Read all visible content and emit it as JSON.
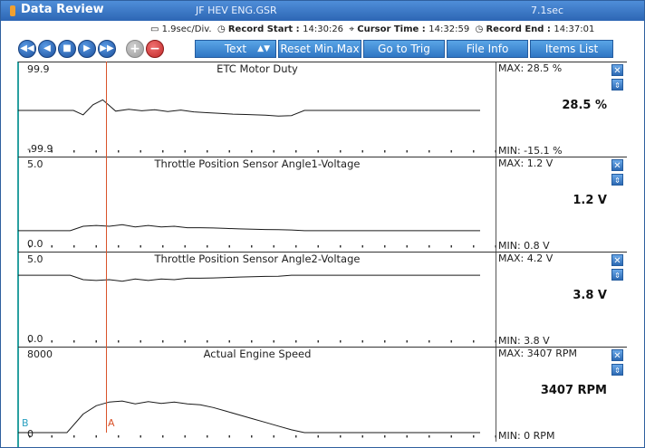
{
  "window": {
    "title": "Data Review",
    "file": "JF HEV ENG.GSR",
    "time_scale": "7.1sec"
  },
  "info": {
    "div": "1.9sec/Div.",
    "record_start_label": "Record Start",
    "record_start": "14:30:26",
    "cursor_time_label": "Cursor Time",
    "cursor_time": "14:32:59",
    "record_end_label": "Record End",
    "record_end": "14:37:01"
  },
  "toolbar": {
    "nav_icons": [
      "rewind-icon",
      "prev-icon",
      "stop-icon",
      "play-icon",
      "fast-forward-icon"
    ],
    "zoom_in": "+",
    "zoom_out": "−",
    "text_label": "Text",
    "reset_label": "Reset Min.Max",
    "gototrig_label": "Go to Trig",
    "fileinfo_label": "File Info",
    "itemslist_label": "Items List"
  },
  "markers": {
    "a": "A",
    "b": "B"
  },
  "panels": [
    {
      "title": "ETC Motor Duty",
      "ymax_label": "99.9",
      "ymin_label": "-99.9",
      "max_label": "MAX:  28.5 %",
      "min_label": "MIN:  -15.1 %",
      "current": "28.5 %",
      "ylim": [
        -99.9,
        99.9
      ],
      "x": [
        0,
        0.85,
        1.0,
        1.15,
        1.3,
        1.5,
        1.7,
        1.9,
        2.1,
        2.3,
        2.5,
        2.7,
        2.9,
        3.1,
        3.3,
        3.5,
        3.8,
        4.0,
        4.2,
        4.4,
        7.1
      ],
      "y": [
        0,
        0,
        -12,
        15,
        28.5,
        -2,
        3,
        -1,
        2,
        -3,
        1,
        -4,
        -6,
        -8,
        -10,
        -11,
        -13,
        -15.1,
        -14,
        0,
        0
      ]
    },
    {
      "title": "Throttle Position Sensor Angle1-Voltage",
      "ymax_label": "5.0",
      "ymin_label": "0.0",
      "max_label": "MAX:   1.2 V",
      "min_label": "MIN:   0.8 V",
      "current": "1.2 V",
      "ylim": [
        0,
        5
      ],
      "x": [
        0,
        0.8,
        1.0,
        1.2,
        1.4,
        1.6,
        1.8,
        2.0,
        2.2,
        2.4,
        2.6,
        2.8,
        3.0,
        3.2,
        3.4,
        3.6,
        3.8,
        4.0,
        4.2,
        4.4,
        7.1
      ],
      "y": [
        0.8,
        0.8,
        1.1,
        1.15,
        1.1,
        1.2,
        1.05,
        1.15,
        1.05,
        1.1,
        1.0,
        1.0,
        0.98,
        0.95,
        0.92,
        0.9,
        0.88,
        0.87,
        0.85,
        0.8,
        0.8
      ]
    },
    {
      "title": "Throttle Position Sensor Angle2-Voltage",
      "ymax_label": "5.0",
      "ymin_label": "0.0",
      "max_label": "MAX:   4.2 V",
      "min_label": "MIN:   3.8 V",
      "current": "3.8 V",
      "ylim": [
        0,
        5
      ],
      "x": [
        0,
        0.8,
        1.0,
        1.2,
        1.4,
        1.6,
        1.8,
        2.0,
        2.2,
        2.4,
        2.6,
        2.8,
        3.0,
        3.2,
        3.4,
        3.6,
        3.8,
        4.0,
        4.2,
        4.4,
        7.1
      ],
      "y": [
        4.2,
        4.2,
        3.9,
        3.85,
        3.9,
        3.8,
        3.95,
        3.85,
        3.95,
        3.9,
        4.0,
        4.0,
        4.02,
        4.05,
        4.08,
        4.1,
        4.12,
        4.13,
        4.2,
        4.2,
        4.2
      ]
    },
    {
      "title": "Actual Engine Speed",
      "ymax_label": "8000",
      "ymin_label": "0",
      "max_label": "MAX:  3407 RPM",
      "min_label": "MIN:     0 RPM",
      "current": "3407 RPM",
      "ylim": [
        0,
        8000
      ],
      "x": [
        0,
        0.75,
        1.0,
        1.2,
        1.4,
        1.6,
        1.8,
        2.0,
        2.2,
        2.4,
        2.6,
        2.8,
        3.0,
        3.2,
        3.4,
        3.6,
        3.8,
        4.0,
        4.2,
        4.4,
        7.1
      ],
      "y": [
        0,
        0,
        2000,
        2900,
        3300,
        3407,
        3100,
        3350,
        3150,
        3300,
        3100,
        3000,
        2700,
        2300,
        1900,
        1500,
        1100,
        700,
        300,
        0,
        0
      ]
    }
  ]
}
